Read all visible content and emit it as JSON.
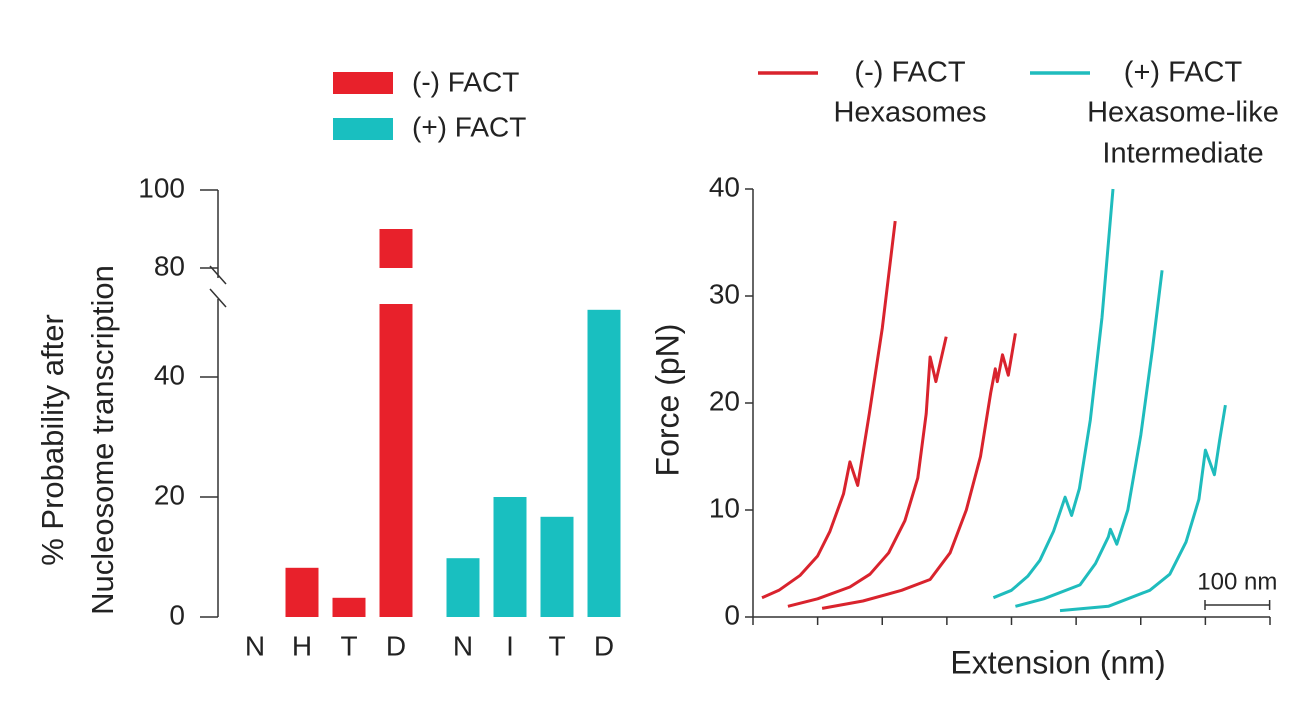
{
  "chart_data": [
    {
      "type": "bar",
      "categories": [
        "N",
        "H",
        "T",
        "D",
        "N",
        "I",
        "T",
        "D"
      ],
      "series": [
        {
          "name": "(-) FACT",
          "color": "#e8212b",
          "values": [
            0,
            8.2,
            3.2,
            90,
            null,
            null,
            null,
            null
          ]
        },
        {
          "name": "(+) FACT",
          "color": "#19bfc0",
          "values": [
            null,
            null,
            null,
            null,
            9.8,
            20,
            16.7,
            51.2
          ]
        }
      ],
      "ylabel": [
        "% Probability after",
        "Nucleosome transcription"
      ],
      "ylim": [
        0,
        100
      ],
      "ybreak": [
        53,
        80
      ],
      "yticks": [
        0,
        20,
        40,
        80,
        100
      ]
    },
    {
      "type": "line",
      "xlabel": "Extension (nm)",
      "ylabel": "Force (pN)",
      "xlim": [
        0,
        800
      ],
      "ylim": [
        0,
        40
      ],
      "xticks": [
        0,
        100,
        200,
        300,
        400,
        500,
        600,
        700,
        800
      ],
      "xtick_labels": false,
      "yticks": [
        0,
        10,
        20,
        30,
        40
      ],
      "scale_bar": {
        "value": 100,
        "label": "100 nm"
      },
      "series": [
        {
          "name": "(-) FACT",
          "description": [
            "Hexasomes"
          ],
          "color": "#d9232d",
          "curves": [
            {
              "x": [
                14,
                40,
                73,
                100,
                119,
                140,
                150,
                162,
                180,
                200,
                220
              ],
              "y": [
                1.8,
                2.5,
                3.9,
                5.7,
                8,
                11.5,
                14.5,
                12.3,
                19,
                27,
                37
              ]
            },
            {
              "x": [
                54,
                100,
                150,
                181,
                210,
                235,
                255,
                268,
                274,
                283,
                299
              ],
              "y": [
                1,
                1.7,
                2.8,
                4,
                6,
                9,
                13,
                19,
                24.3,
                22,
                26.2
              ]
            },
            {
              "x": [
                107,
                170,
                230,
                274,
                305,
                330,
                352,
                368,
                375,
                378,
                386,
                395,
                406
              ],
              "y": [
                0.8,
                1.5,
                2.5,
                3.5,
                6,
                10,
                15,
                21,
                23.2,
                22,
                24.5,
                22.6,
                26.5
              ]
            }
          ]
        },
        {
          "name": "(+) FACT",
          "description": [
            "Hexasome-like",
            "Intermediate"
          ],
          "color": "#1fbcbd",
          "curves": [
            {
              "x": [
                372,
                400,
                425,
                444,
                465,
                483,
                493,
                505,
                522,
                540,
                557
              ],
              "y": [
                1.8,
                2.5,
                3.8,
                5.3,
                8,
                11.2,
                9.5,
                12,
                18.4,
                28,
                40
              ]
            },
            {
              "x": [
                406,
                450,
                506,
                530,
                550,
                553,
                563,
                580,
                600,
                618,
                633
              ],
              "y": [
                1,
                1.7,
                3,
                5,
                7.5,
                8.2,
                6.8,
                10,
                17,
                25,
                32.4
              ]
            },
            {
              "x": [
                475,
                550,
                614,
                645,
                670,
                690,
                700,
                714,
                722,
                731
              ],
              "y": [
                0.6,
                1,
                2.5,
                4,
                7,
                11,
                15.6,
                13.3,
                16.5,
                19.8
              ]
            }
          ]
        }
      ]
    }
  ]
}
